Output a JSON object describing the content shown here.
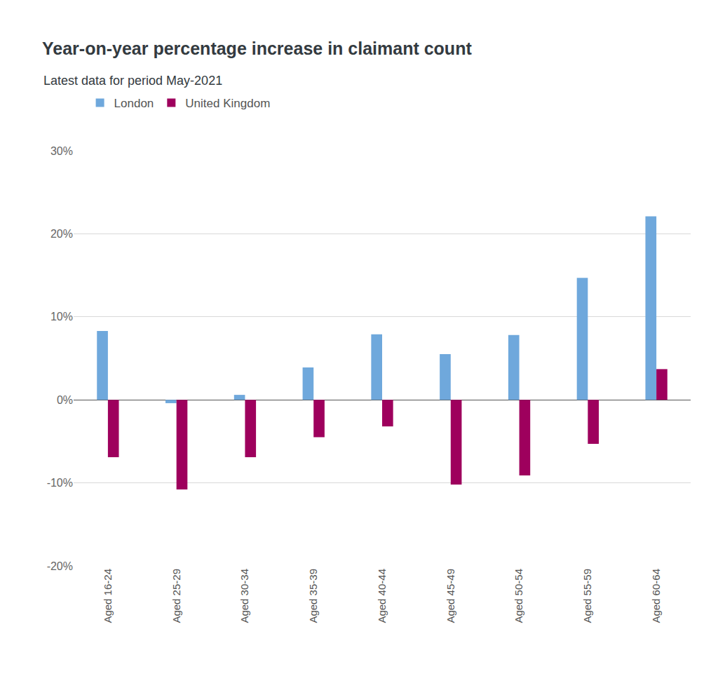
{
  "chart_data": {
    "type": "bar",
    "title": "Year-on-year percentage increase in claimant count",
    "subtitle": "Latest data for period May-2021",
    "categories": [
      "Aged 16-24",
      "Aged 25-29",
      "Aged 30-34",
      "Aged 35-39",
      "Aged 40-44",
      "Aged 45-49",
      "Aged 50-54",
      "Aged 55-59",
      "Aged 60-64"
    ],
    "series": [
      {
        "name": "London",
        "color": "#6fa8dc",
        "values": [
          8.3,
          -0.4,
          0.6,
          3.9,
          7.9,
          5.5,
          7.8,
          14.7,
          22.1
        ]
      },
      {
        "name": "United Kingdom",
        "color": "#9e005d",
        "values": [
          -6.9,
          -10.8,
          -6.9,
          -4.5,
          -3.2,
          -10.2,
          -9.1,
          -5.3,
          3.7
        ]
      }
    ],
    "ylim": [
      -20,
      30
    ],
    "yticks": [
      {
        "value": -20,
        "label": "-20%"
      },
      {
        "value": -10,
        "label": "-10%"
      },
      {
        "value": 0,
        "label": "0%"
      },
      {
        "value": 10,
        "label": "10%"
      },
      {
        "value": 20,
        "label": "20%"
      },
      {
        "value": 30,
        "label": "30%"
      }
    ],
    "grid": true,
    "legend": "top-left"
  }
}
